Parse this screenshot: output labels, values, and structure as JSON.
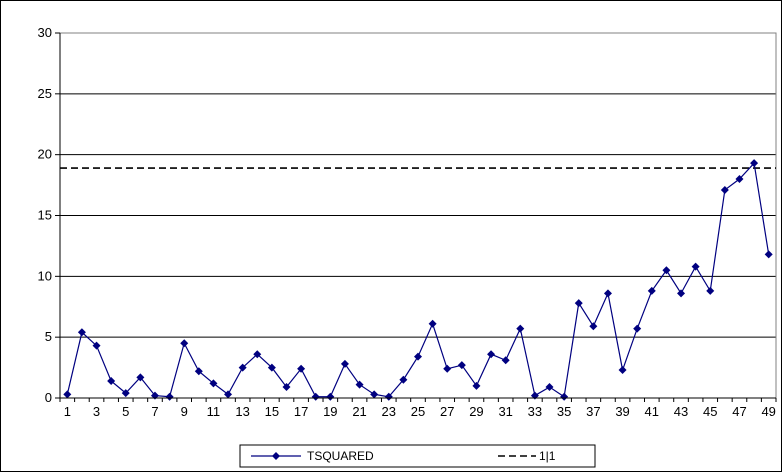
{
  "chart_data": {
    "type": "line",
    "title": "",
    "xlabel": "",
    "ylabel": "",
    "ylim": [
      0,
      30
    ],
    "yticks": [
      0,
      5,
      10,
      15,
      20,
      25,
      30
    ],
    "xticks": [
      1,
      3,
      5,
      7,
      9,
      11,
      13,
      15,
      17,
      19,
      21,
      23,
      25,
      27,
      29,
      31,
      33,
      35,
      37,
      39,
      41,
      43,
      45,
      47,
      49
    ],
    "x": [
      1,
      2,
      3,
      4,
      5,
      6,
      7,
      8,
      9,
      10,
      11,
      12,
      13,
      14,
      15,
      16,
      17,
      18,
      19,
      20,
      21,
      22,
      23,
      24,
      25,
      26,
      27,
      28,
      29,
      30,
      31,
      32,
      33,
      34,
      35,
      36,
      37,
      38,
      39,
      40,
      41,
      42,
      43,
      44,
      45,
      46,
      47,
      48,
      49
    ],
    "grid": "horizontal",
    "legend_position": "bottom",
    "series": [
      {
        "name": "TSQUARED",
        "color": "#000080",
        "marker": "diamond",
        "values": [
          0.3,
          5.4,
          4.3,
          1.4,
          0.4,
          1.7,
          0.2,
          0.1,
          4.5,
          2.2,
          1.2,
          0.3,
          2.5,
          3.6,
          2.5,
          0.9,
          2.4,
          0.1,
          0.1,
          2.8,
          1.1,
          0.3,
          0.1,
          1.5,
          3.4,
          6.1,
          2.4,
          2.7,
          1.0,
          3.6,
          3.1,
          5.7,
          0.2,
          0.9,
          0.1,
          7.8,
          5.9,
          8.6,
          2.3,
          5.7,
          8.8,
          10.5,
          8.6,
          10.8,
          8.8,
          17.1,
          18.0,
          19.3,
          11.8
        ]
      },
      {
        "name": "1|1",
        "color": "#000000",
        "style": "dashed",
        "y": 18.9
      }
    ]
  }
}
